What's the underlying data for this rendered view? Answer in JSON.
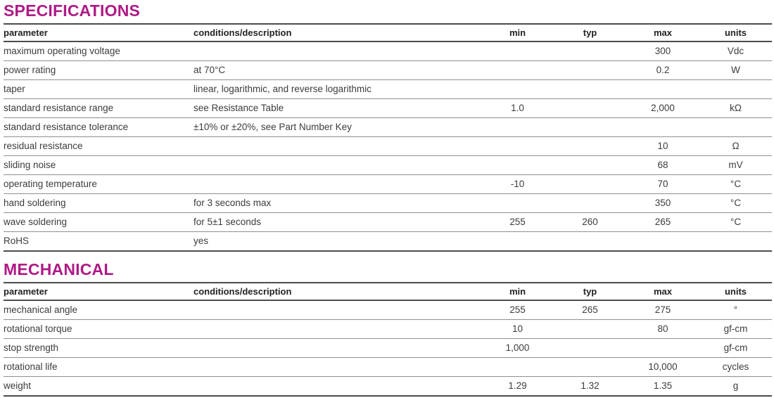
{
  "accent_color": "#af1a86",
  "sections": [
    {
      "title": "SPECIFICATIONS",
      "columns": [
        "parameter",
        "conditions/description",
        "min",
        "typ",
        "max",
        "units"
      ],
      "rows": [
        [
          "maximum operating voltage",
          "",
          "",
          "",
          "300",
          "Vdc"
        ],
        [
          "power rating",
          "at 70°C",
          "",
          "",
          "0.2",
          "W"
        ],
        [
          "taper",
          "linear, logarithmic, and reverse logarithmic",
          "",
          "",
          "",
          ""
        ],
        [
          "standard resistance range",
          "see Resistance Table",
          "1.0",
          "",
          "2,000",
          "kΩ"
        ],
        [
          "standard resistance tolerance",
          "±10% or ±20%, see Part Number Key",
          "",
          "",
          "",
          ""
        ],
        [
          "residual resistance",
          "",
          "",
          "",
          "10",
          "Ω"
        ],
        [
          "sliding noise",
          "",
          "",
          "",
          "68",
          "mV"
        ],
        [
          "operating temperature",
          "",
          "-10",
          "",
          "70",
          "°C"
        ],
        [
          "hand soldering",
          "for 3 seconds max",
          "",
          "",
          "350",
          "°C"
        ],
        [
          "wave soldering",
          "for 5±1 seconds",
          "255",
          "260",
          "265",
          "°C"
        ],
        [
          "RoHS",
          "yes",
          "",
          "",
          "",
          ""
        ]
      ]
    },
    {
      "title": "MECHANICAL",
      "columns": [
        "parameter",
        "conditions/description",
        "min",
        "typ",
        "max",
        "units"
      ],
      "rows": [
        [
          "mechanical angle",
          "",
          "255",
          "265",
          "275",
          "°"
        ],
        [
          "rotational torque",
          "",
          "10",
          "",
          "80",
          "gf-cm"
        ],
        [
          "stop strength",
          "",
          "1,000",
          "",
          "",
          "gf-cm"
        ],
        [
          "rotational life",
          "",
          "",
          "",
          "10,000",
          "cycles"
        ],
        [
          "weight",
          "",
          "1.29",
          "1.32",
          "1.35",
          "g"
        ]
      ]
    }
  ]
}
